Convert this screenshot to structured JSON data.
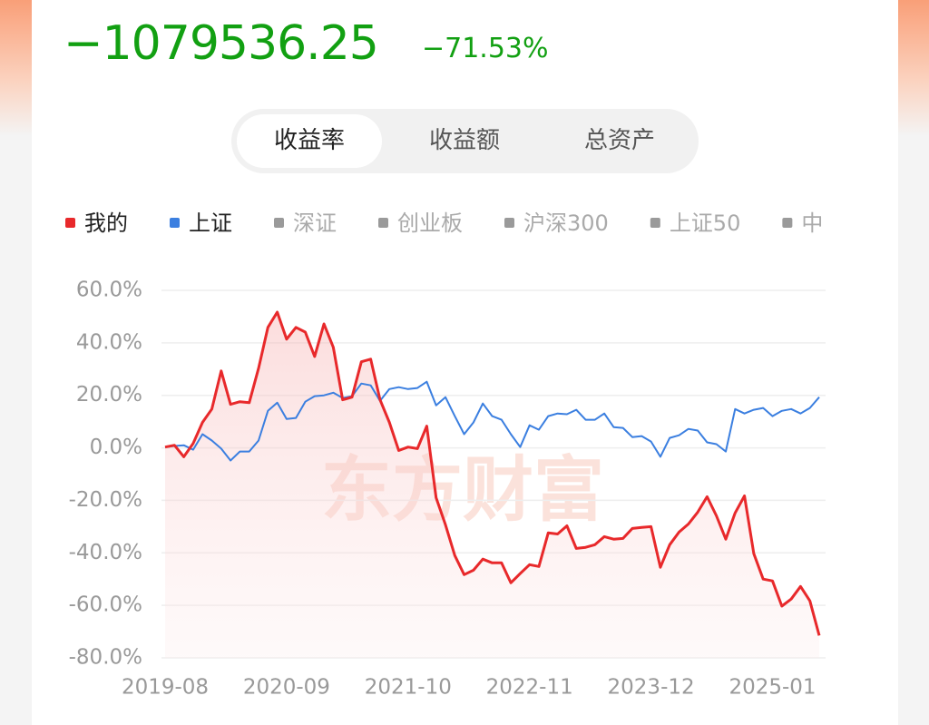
{
  "header": {
    "amount": "−1079536.25",
    "change": "−71.53%"
  },
  "tabs": {
    "items": [
      "收益率",
      "收益额",
      "总资产"
    ],
    "active": 0
  },
  "chart_data": {
    "type": "line",
    "watermark": "东方财富",
    "categories": [
      "2019-08",
      null,
      null,
      null,
      null,
      null,
      null,
      null,
      null,
      null,
      null,
      null,
      null,
      "2020-09",
      null,
      null,
      null,
      null,
      null,
      null,
      null,
      null,
      null,
      null,
      null,
      null,
      "2021-10",
      null,
      null,
      null,
      null,
      null,
      null,
      null,
      null,
      null,
      null,
      null,
      null,
      "2022-11",
      null,
      null,
      null,
      null,
      null,
      null,
      null,
      null,
      null,
      null,
      null,
      null,
      "2023-12",
      null,
      null,
      null,
      null,
      null,
      null,
      null,
      null,
      null,
      null,
      null,
      null,
      "2025-01",
      null,
      null,
      null,
      null,
      null
    ],
    "series": [
      {
        "name": "我的",
        "color": "#e8292b",
        "fill": true,
        "values": [
          0.3,
          1,
          -3.4,
          1.7,
          9.7,
          14.8,
          29.3,
          16.6,
          17.6,
          17.2,
          30.3,
          45.9,
          51.7,
          41.4,
          45.9,
          44.1,
          34.8,
          47.2,
          38.3,
          18.3,
          19.3,
          32.8,
          33.8,
          18.3,
          9.7,
          -1,
          0.3,
          -0.3,
          8.3,
          -19,
          -29.3,
          -41,
          -48.3,
          -46.6,
          -42.4,
          -43.8,
          -43.8,
          -51.4,
          -47.9,
          -44.5,
          -45.2,
          -32.4,
          -32.8,
          -29.7,
          -38.3,
          -37.9,
          -36.9,
          -33.8,
          -34.8,
          -34.5,
          -30.7,
          -30.3,
          -30,
          -45.5,
          -36.9,
          -32.1,
          -29,
          -24.5,
          -18.6,
          -25.9,
          -34.8,
          -24.8,
          -18.3,
          -40.3,
          -50,
          -50.7,
          -60.3,
          -57.6,
          -52.8,
          -58.3,
          -71.5
        ]
      },
      {
        "name": "上证",
        "color": "#3b7fe0",
        "fill": false,
        "values": [
          0.3,
          0.7,
          1,
          -0.7,
          5.2,
          2.8,
          -0.3,
          -4.8,
          -1.4,
          -1.4,
          2.8,
          14.1,
          17.2,
          11,
          11.4,
          17.6,
          19.7,
          20,
          21,
          19,
          19.7,
          24.5,
          23.8,
          17.9,
          22.4,
          23.1,
          22.4,
          22.8,
          25.2,
          16.2,
          19.3,
          12.1,
          5.2,
          9.7,
          16.9,
          12.1,
          10.7,
          5.2,
          0.3,
          8.6,
          6.9,
          12.1,
          13.1,
          12.8,
          14.5,
          10.7,
          10.7,
          13.1,
          7.9,
          7.6,
          4.1,
          4.5,
          2.4,
          -3.4,
          3.8,
          4.8,
          7.2,
          6.6,
          2.1,
          1.4,
          -1.4,
          14.8,
          13.1,
          14.5,
          15.2,
          12.1,
          14.1,
          14.8,
          13.1,
          15.2,
          19.3
        ]
      }
    ],
    "inactive_series": {
      "color": "#9a9a9a",
      "names": [
        "深证",
        "创业板",
        "沪深300",
        "上证50",
        "中"
      ]
    },
    "ylim": [
      -80,
      60
    ],
    "yticks": [
      {
        "value": 60,
        "label": "60.0%"
      },
      {
        "value": 40,
        "label": "40.0%"
      },
      {
        "value": 20,
        "label": "20.0%"
      },
      {
        "value": 0,
        "label": "0.0%"
      },
      {
        "value": -20,
        "label": "-20.0%"
      },
      {
        "value": -40,
        "label": "-40.0%"
      },
      {
        "value": -60,
        "label": "-60.0%"
      },
      {
        "value": -80,
        "label": "-80.0%"
      }
    ],
    "grid": true
  }
}
